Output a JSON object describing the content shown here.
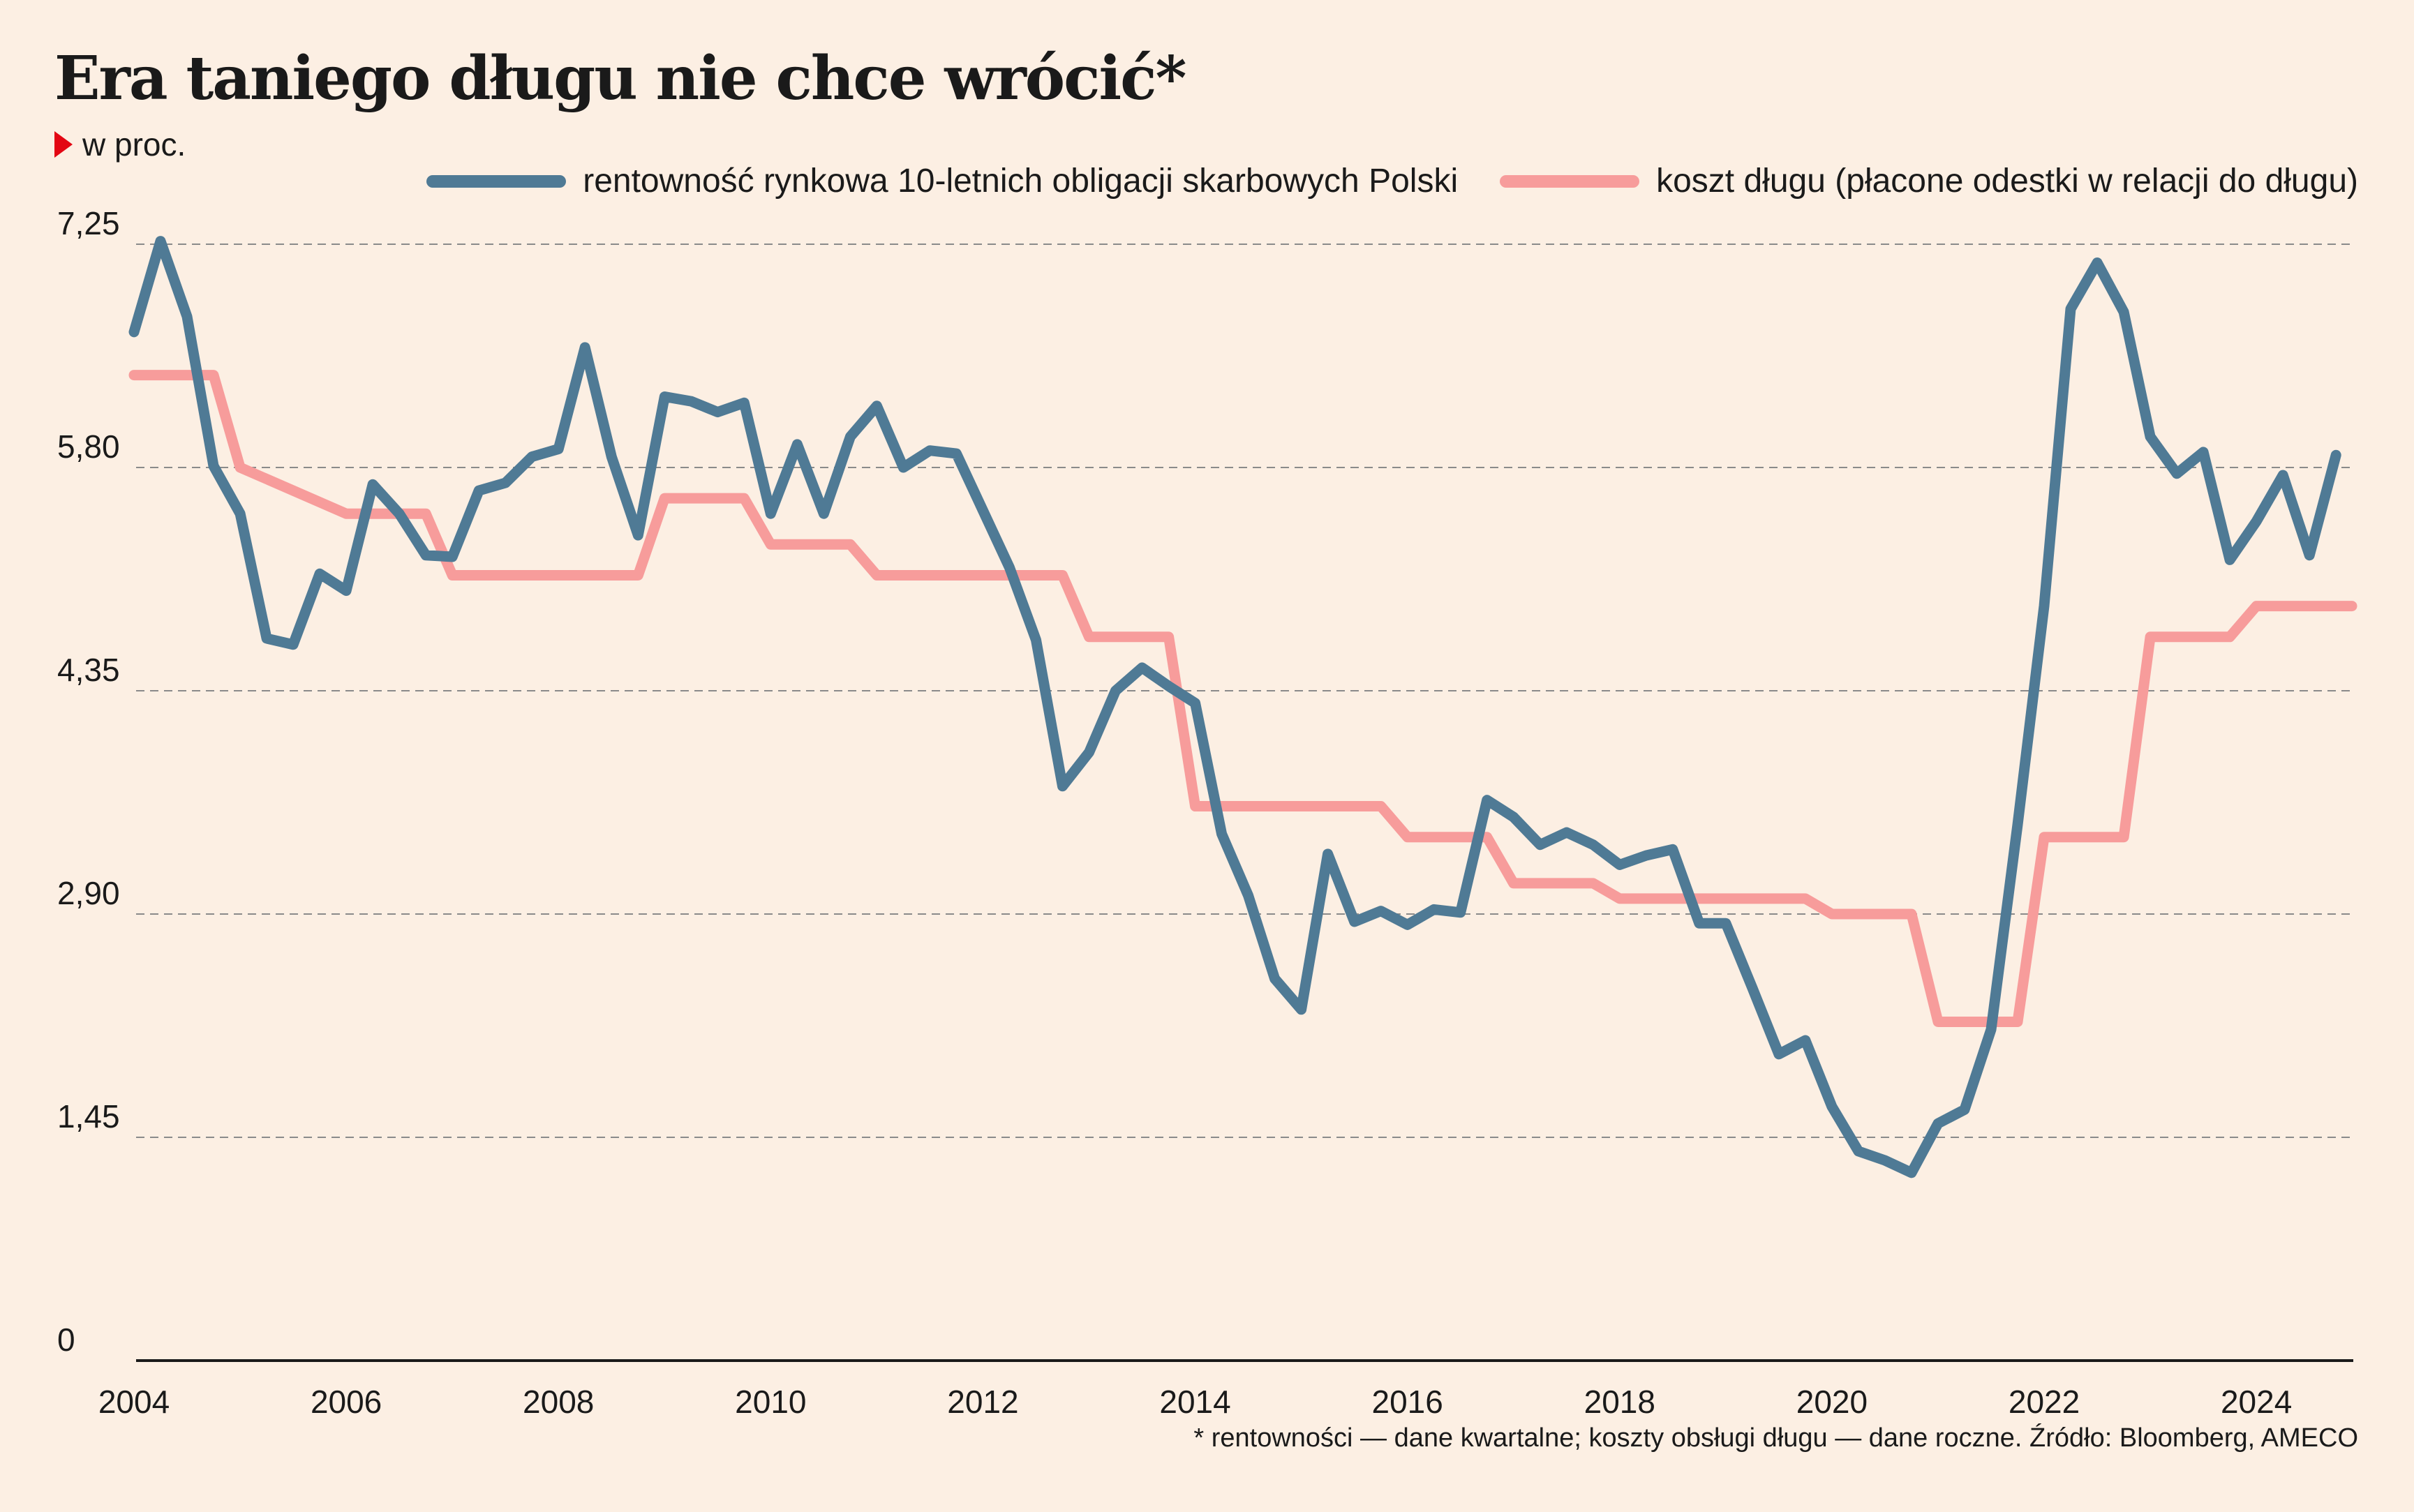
{
  "title": "Era taniego długu nie chce wrócić*",
  "unit": "w proc.",
  "footnote": "* rentowności — dane kwartalne; koszty obsługi długu — dane roczne. Źródło: Bloomberg, AMECO",
  "colors": {
    "background": "#fcefe3",
    "series1": "#4f7a95",
    "series2": "#f79c9b",
    "grid": "#8a8a8a",
    "axis": "#1a1a1a",
    "marker": "#e30613"
  },
  "chart_data": {
    "type": "line",
    "xlim": [
      2004,
      2024.9
    ],
    "ylim": [
      0,
      7.25
    ],
    "grid": true,
    "legend": "top-right",
    "y_ticks": [
      {
        "value": 7.25,
        "label": "7,25"
      },
      {
        "value": 5.8,
        "label": "5,80"
      },
      {
        "value": 4.35,
        "label": "4,35"
      },
      {
        "value": 2.9,
        "label": "2,90"
      },
      {
        "value": 1.45,
        "label": "1,45"
      },
      {
        "value": 0,
        "label": "0"
      }
    ],
    "x_ticks": [
      {
        "value": 2004,
        "label": "2004"
      },
      {
        "value": 2006,
        "label": "2006"
      },
      {
        "value": 2008,
        "label": "2008"
      },
      {
        "value": 2010,
        "label": "2010"
      },
      {
        "value": 2012,
        "label": "2012"
      },
      {
        "value": 2014,
        "label": "2014"
      },
      {
        "value": 2016,
        "label": "2016"
      },
      {
        "value": 2018,
        "label": "2018"
      },
      {
        "value": 2020,
        "label": "2020"
      },
      {
        "value": 2022,
        "label": "2022"
      },
      {
        "value": 2024,
        "label": "2024"
      }
    ],
    "series": [
      {
        "name": "rentowność rynkowa 10-letnich obligacji skarbowych Polski",
        "color": "#4f7a95",
        "step": false,
        "x": [
          2004.0,
          2004.25,
          2004.5,
          2004.75,
          2005.0,
          2005.25,
          2005.5,
          2005.75,
          2006.0,
          2006.25,
          2006.5,
          2006.75,
          2007.0,
          2007.25,
          2007.5,
          2007.75,
          2008.0,
          2008.25,
          2008.5,
          2008.75,
          2009.0,
          2009.25,
          2009.5,
          2009.75,
          2010.0,
          2010.25,
          2010.5,
          2010.75,
          2011.0,
          2011.25,
          2011.5,
          2011.75,
          2012.0,
          2012.25,
          2012.5,
          2012.75,
          2013.0,
          2013.25,
          2013.5,
          2013.75,
          2014.0,
          2014.25,
          2014.5,
          2014.75,
          2015.0,
          2015.25,
          2015.5,
          2015.75,
          2016.0,
          2016.25,
          2016.5,
          2016.75,
          2017.0,
          2017.25,
          2017.5,
          2017.75,
          2018.0,
          2018.25,
          2018.5,
          2018.75,
          2019.0,
          2019.25,
          2019.5,
          2019.75,
          2020.0,
          2020.25,
          2020.5,
          2020.75,
          2021.0,
          2021.25,
          2021.5,
          2021.75,
          2022.0,
          2022.25,
          2022.5,
          2022.75,
          2023.0,
          2023.25,
          2023.5,
          2023.75,
          2024.0,
          2024.25,
          2024.5,
          2024.75
        ],
        "y": [
          6.68,
          7.27,
          6.78,
          5.81,
          5.5,
          4.69,
          4.65,
          5.11,
          5.0,
          5.69,
          5.5,
          5.23,
          5.22,
          5.65,
          5.7,
          5.87,
          5.92,
          6.58,
          5.87,
          5.36,
          6.26,
          6.23,
          6.16,
          6.22,
          5.5,
          5.95,
          5.5,
          6.0,
          6.2,
          5.8,
          5.91,
          5.89,
          5.52,
          5.15,
          4.68,
          3.73,
          3.95,
          4.35,
          4.5,
          4.38,
          4.27,
          3.42,
          3.02,
          2.48,
          2.28,
          3.29,
          2.85,
          2.92,
          2.83,
          2.93,
          2.91,
          3.64,
          3.53,
          3.35,
          3.43,
          3.35,
          3.22,
          3.28,
          3.32,
          2.84,
          2.84,
          2.42,
          1.99,
          2.08,
          1.65,
          1.36,
          1.3,
          1.22,
          1.54,
          1.63,
          2.15,
          3.48,
          4.9,
          6.83,
          7.13,
          6.81,
          6.0,
          5.76,
          5.9,
          5.2,
          5.45,
          5.75,
          5.23,
          5.88
        ]
      },
      {
        "name": "koszt długu (płacone odestki w relacji do długu)",
        "color": "#f79c9b",
        "step": true,
        "x": [
          2004.0,
          2004.75,
          2005.0,
          2006.0,
          2006.75,
          2007.0,
          2008.0,
          2008.75,
          2009.0,
          2009.75,
          2010.0,
          2010.75,
          2011.0,
          2012.0,
          2012.75,
          2013.0,
          2013.75,
          2014.0,
          2015.0,
          2015.75,
          2016.0,
          2016.75,
          2017.0,
          2017.75,
          2018.0,
          2018.75,
          2019.0,
          2019.75,
          2020.0,
          2020.75,
          2021.0,
          2021.75,
          2022.0,
          2022.75,
          2023.0,
          2023.75,
          2024.0,
          2024.9
        ],
        "y": [
          6.4,
          6.4,
          5.8,
          5.5,
          5.5,
          5.1,
          5.1,
          5.1,
          5.6,
          5.6,
          5.3,
          5.3,
          5.1,
          5.1,
          5.1,
          4.7,
          4.7,
          3.6,
          3.6,
          3.6,
          3.4,
          3.4,
          3.1,
          3.1,
          3.0,
          3.0,
          3.0,
          3.0,
          2.9,
          2.9,
          2.2,
          2.2,
          3.4,
          3.4,
          4.7,
          4.7,
          4.9,
          4.9
        ]
      }
    ]
  }
}
